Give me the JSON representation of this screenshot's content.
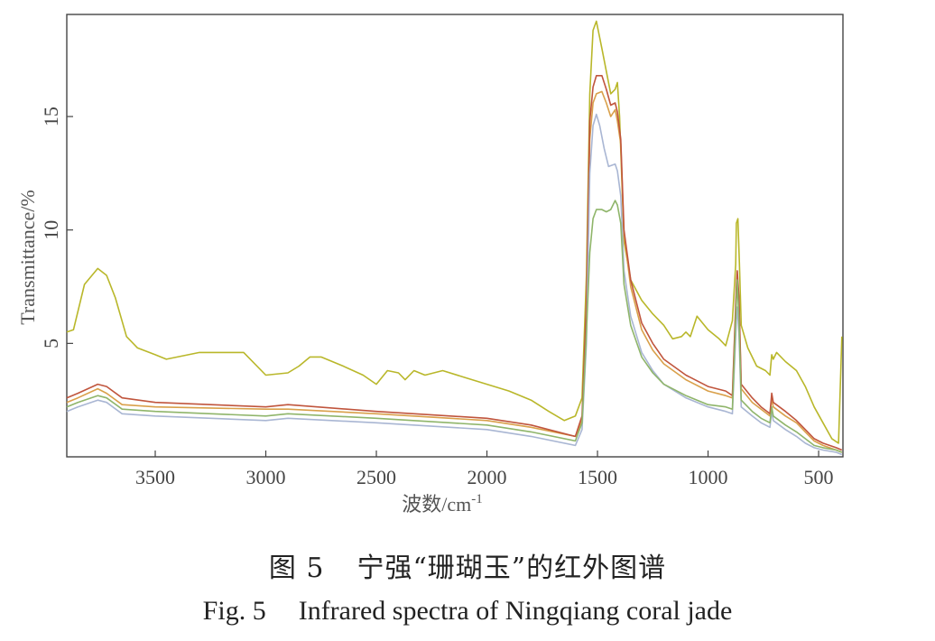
{
  "chart_data": {
    "type": "line",
    "xlabel": "波数/cm",
    "xlabel_sup": "-1",
    "ylabel": "Transmittance/%",
    "xlim": [
      3900,
      390
    ],
    "ylim": [
      0,
      19.5
    ],
    "xticks": [
      3500,
      3000,
      2500,
      2000,
      1500,
      1000,
      500
    ],
    "yticks": [
      5,
      10,
      15
    ],
    "grid": false,
    "series": [
      {
        "name": "yellow-green",
        "color": "#b9b72a",
        "points": [
          [
            3900,
            5.5
          ],
          [
            3870,
            5.6
          ],
          [
            3820,
            7.6
          ],
          [
            3760,
            8.3
          ],
          [
            3720,
            8.0
          ],
          [
            3680,
            7.0
          ],
          [
            3630,
            5.3
          ],
          [
            3580,
            4.8
          ],
          [
            3500,
            4.5
          ],
          [
            3450,
            4.3
          ],
          [
            3300,
            4.6
          ],
          [
            3100,
            4.6
          ],
          [
            3000,
            3.6
          ],
          [
            2900,
            3.7
          ],
          [
            2850,
            4.0
          ],
          [
            2800,
            4.4
          ],
          [
            2750,
            4.4
          ],
          [
            2650,
            4.0
          ],
          [
            2560,
            3.6
          ],
          [
            2500,
            3.2
          ],
          [
            2450,
            3.8
          ],
          [
            2400,
            3.7
          ],
          [
            2370,
            3.4
          ],
          [
            2330,
            3.8
          ],
          [
            2280,
            3.6
          ],
          [
            2200,
            3.8
          ],
          [
            2100,
            3.5
          ],
          [
            2000,
            3.2
          ],
          [
            1900,
            2.9
          ],
          [
            1800,
            2.5
          ],
          [
            1720,
            2.0
          ],
          [
            1650,
            1.6
          ],
          [
            1600,
            1.8
          ],
          [
            1570,
            2.6
          ],
          [
            1550,
            8.0
          ],
          [
            1535,
            16.0
          ],
          [
            1520,
            18.8
          ],
          [
            1505,
            19.2
          ],
          [
            1480,
            18.0
          ],
          [
            1460,
            17.0
          ],
          [
            1440,
            16.0
          ],
          [
            1420,
            16.2
          ],
          [
            1410,
            16.5
          ],
          [
            1400,
            15.0
          ],
          [
            1380,
            9.5
          ],
          [
            1350,
            7.8
          ],
          [
            1300,
            6.9
          ],
          [
            1250,
            6.3
          ],
          [
            1200,
            5.8
          ],
          [
            1160,
            5.2
          ],
          [
            1120,
            5.3
          ],
          [
            1100,
            5.5
          ],
          [
            1080,
            5.3
          ],
          [
            1050,
            6.2
          ],
          [
            1000,
            5.6
          ],
          [
            950,
            5.2
          ],
          [
            920,
            4.9
          ],
          [
            890,
            6.0
          ],
          [
            875,
            8.5
          ],
          [
            872,
            10.3
          ],
          [
            865,
            10.5
          ],
          [
            858,
            8.5
          ],
          [
            850,
            5.8
          ],
          [
            820,
            4.8
          ],
          [
            780,
            4.0
          ],
          [
            740,
            3.8
          ],
          [
            720,
            3.6
          ],
          [
            712,
            4.5
          ],
          [
            705,
            4.3
          ],
          [
            690,
            4.6
          ],
          [
            650,
            4.2
          ],
          [
            600,
            3.8
          ],
          [
            560,
            3.1
          ],
          [
            520,
            2.2
          ],
          [
            480,
            1.5
          ],
          [
            440,
            0.8
          ],
          [
            410,
            0.6
          ],
          [
            395,
            5.3
          ]
        ]
      },
      {
        "name": "orange",
        "color": "#d9a04a",
        "points": [
          [
            3900,
            2.4
          ],
          [
            3850,
            2.6
          ],
          [
            3760,
            3.0
          ],
          [
            3720,
            2.8
          ],
          [
            3650,
            2.3
          ],
          [
            3500,
            2.2
          ],
          [
            3000,
            2.1
          ],
          [
            2900,
            2.1
          ],
          [
            2500,
            1.9
          ],
          [
            2000,
            1.6
          ],
          [
            1800,
            1.3
          ],
          [
            1600,
            0.9
          ],
          [
            1570,
            1.6
          ],
          [
            1550,
            6.5
          ],
          [
            1535,
            14.0
          ],
          [
            1520,
            15.6
          ],
          [
            1505,
            16.0
          ],
          [
            1480,
            16.1
          ],
          [
            1460,
            15.6
          ],
          [
            1440,
            15.0
          ],
          [
            1420,
            15.3
          ],
          [
            1410,
            14.8
          ],
          [
            1395,
            13.8
          ],
          [
            1380,
            9.8
          ],
          [
            1350,
            7.5
          ],
          [
            1300,
            5.6
          ],
          [
            1250,
            4.7
          ],
          [
            1200,
            4.1
          ],
          [
            1100,
            3.4
          ],
          [
            1000,
            2.9
          ],
          [
            920,
            2.7
          ],
          [
            890,
            2.6
          ],
          [
            872,
            7.2
          ],
          [
            868,
            8.0
          ],
          [
            860,
            6.8
          ],
          [
            850,
            3.0
          ],
          [
            800,
            2.4
          ],
          [
            760,
            2.1
          ],
          [
            720,
            1.8
          ],
          [
            712,
            2.6
          ],
          [
            705,
            2.2
          ],
          [
            650,
            1.8
          ],
          [
            600,
            1.5
          ],
          [
            560,
            1.1
          ],
          [
            520,
            0.7
          ],
          [
            480,
            0.5
          ],
          [
            420,
            0.3
          ],
          [
            395,
            0.2
          ]
        ]
      },
      {
        "name": "red",
        "color": "#c0553d",
        "points": [
          [
            3900,
            2.6
          ],
          [
            3850,
            2.8
          ],
          [
            3760,
            3.2
          ],
          [
            3720,
            3.1
          ],
          [
            3650,
            2.6
          ],
          [
            3500,
            2.4
          ],
          [
            3000,
            2.2
          ],
          [
            2900,
            2.3
          ],
          [
            2500,
            2.0
          ],
          [
            2000,
            1.7
          ],
          [
            1800,
            1.4
          ],
          [
            1600,
            0.9
          ],
          [
            1570,
            1.8
          ],
          [
            1550,
            6.8
          ],
          [
            1535,
            14.8
          ],
          [
            1520,
            16.3
          ],
          [
            1505,
            16.8
          ],
          [
            1480,
            16.8
          ],
          [
            1460,
            16.2
          ],
          [
            1440,
            15.5
          ],
          [
            1420,
            15.6
          ],
          [
            1410,
            15.2
          ],
          [
            1395,
            14.0
          ],
          [
            1380,
            10.0
          ],
          [
            1350,
            7.8
          ],
          [
            1300,
            5.9
          ],
          [
            1250,
            5.0
          ],
          [
            1200,
            4.3
          ],
          [
            1100,
            3.6
          ],
          [
            1000,
            3.1
          ],
          [
            920,
            2.9
          ],
          [
            890,
            2.7
          ],
          [
            872,
            7.5
          ],
          [
            868,
            8.2
          ],
          [
            860,
            7.0
          ],
          [
            850,
            3.2
          ],
          [
            800,
            2.6
          ],
          [
            760,
            2.2
          ],
          [
            720,
            1.9
          ],
          [
            712,
            2.8
          ],
          [
            705,
            2.4
          ],
          [
            650,
            2.0
          ],
          [
            600,
            1.6
          ],
          [
            560,
            1.2
          ],
          [
            520,
            0.8
          ],
          [
            480,
            0.6
          ],
          [
            420,
            0.4
          ],
          [
            395,
            0.3
          ]
        ]
      },
      {
        "name": "light-blue",
        "color": "#a9b6d3",
        "points": [
          [
            3900,
            2.0
          ],
          [
            3850,
            2.2
          ],
          [
            3760,
            2.5
          ],
          [
            3720,
            2.4
          ],
          [
            3650,
            1.9
          ],
          [
            3500,
            1.8
          ],
          [
            3000,
            1.6
          ],
          [
            2900,
            1.7
          ],
          [
            2500,
            1.5
          ],
          [
            2000,
            1.2
          ],
          [
            1800,
            0.9
          ],
          [
            1600,
            0.5
          ],
          [
            1570,
            1.2
          ],
          [
            1550,
            5.0
          ],
          [
            1535,
            12.5
          ],
          [
            1520,
            14.6
          ],
          [
            1505,
            15.1
          ],
          [
            1490,
            14.6
          ],
          [
            1470,
            13.6
          ],
          [
            1450,
            12.8
          ],
          [
            1420,
            12.9
          ],
          [
            1410,
            12.6
          ],
          [
            1395,
            11.5
          ],
          [
            1380,
            8.2
          ],
          [
            1350,
            6.2
          ],
          [
            1300,
            4.6
          ],
          [
            1250,
            3.8
          ],
          [
            1200,
            3.2
          ],
          [
            1100,
            2.6
          ],
          [
            1000,
            2.2
          ],
          [
            920,
            2.0
          ],
          [
            890,
            1.9
          ],
          [
            872,
            6.0
          ],
          [
            868,
            6.6
          ],
          [
            860,
            5.4
          ],
          [
            850,
            2.2
          ],
          [
            800,
            1.8
          ],
          [
            760,
            1.5
          ],
          [
            720,
            1.3
          ],
          [
            712,
            2.0
          ],
          [
            705,
            1.6
          ],
          [
            650,
            1.2
          ],
          [
            600,
            0.9
          ],
          [
            560,
            0.6
          ],
          [
            520,
            0.4
          ],
          [
            480,
            0.3
          ],
          [
            420,
            0.2
          ],
          [
            395,
            0.1
          ]
        ]
      },
      {
        "name": "green",
        "color": "#8fb56a",
        "points": [
          [
            3900,
            2.2
          ],
          [
            3850,
            2.4
          ],
          [
            3760,
            2.7
          ],
          [
            3720,
            2.6
          ],
          [
            3650,
            2.1
          ],
          [
            3500,
            2.0
          ],
          [
            3000,
            1.8
          ],
          [
            2900,
            1.9
          ],
          [
            2500,
            1.7
          ],
          [
            2000,
            1.4
          ],
          [
            1800,
            1.1
          ],
          [
            1600,
            0.7
          ],
          [
            1570,
            1.5
          ],
          [
            1550,
            5.5
          ],
          [
            1535,
            9.0
          ],
          [
            1520,
            10.5
          ],
          [
            1505,
            10.9
          ],
          [
            1480,
            10.9
          ],
          [
            1460,
            10.8
          ],
          [
            1440,
            10.9
          ],
          [
            1420,
            11.3
          ],
          [
            1410,
            11.1
          ],
          [
            1395,
            10.3
          ],
          [
            1380,
            7.6
          ],
          [
            1350,
            5.8
          ],
          [
            1300,
            4.4
          ],
          [
            1250,
            3.7
          ],
          [
            1200,
            3.2
          ],
          [
            1100,
            2.7
          ],
          [
            1000,
            2.3
          ],
          [
            920,
            2.2
          ],
          [
            890,
            2.1
          ],
          [
            872,
            6.8
          ],
          [
            868,
            7.8
          ],
          [
            860,
            6.0
          ],
          [
            850,
            2.5
          ],
          [
            800,
            2.0
          ],
          [
            760,
            1.7
          ],
          [
            720,
            1.5
          ],
          [
            712,
            2.2
          ],
          [
            705,
            1.8
          ],
          [
            650,
            1.4
          ],
          [
            600,
            1.1
          ],
          [
            560,
            0.8
          ],
          [
            520,
            0.5
          ],
          [
            480,
            0.4
          ],
          [
            420,
            0.3
          ],
          [
            395,
            0.2
          ]
        ]
      }
    ]
  },
  "caption": {
    "cn_fig": "图 5",
    "cn_text": "宁强“珊瑚玉”的红外图谱",
    "en_fig": "Fig. 5",
    "en_text": "Infrared spectra of Ningqiang coral jade"
  }
}
